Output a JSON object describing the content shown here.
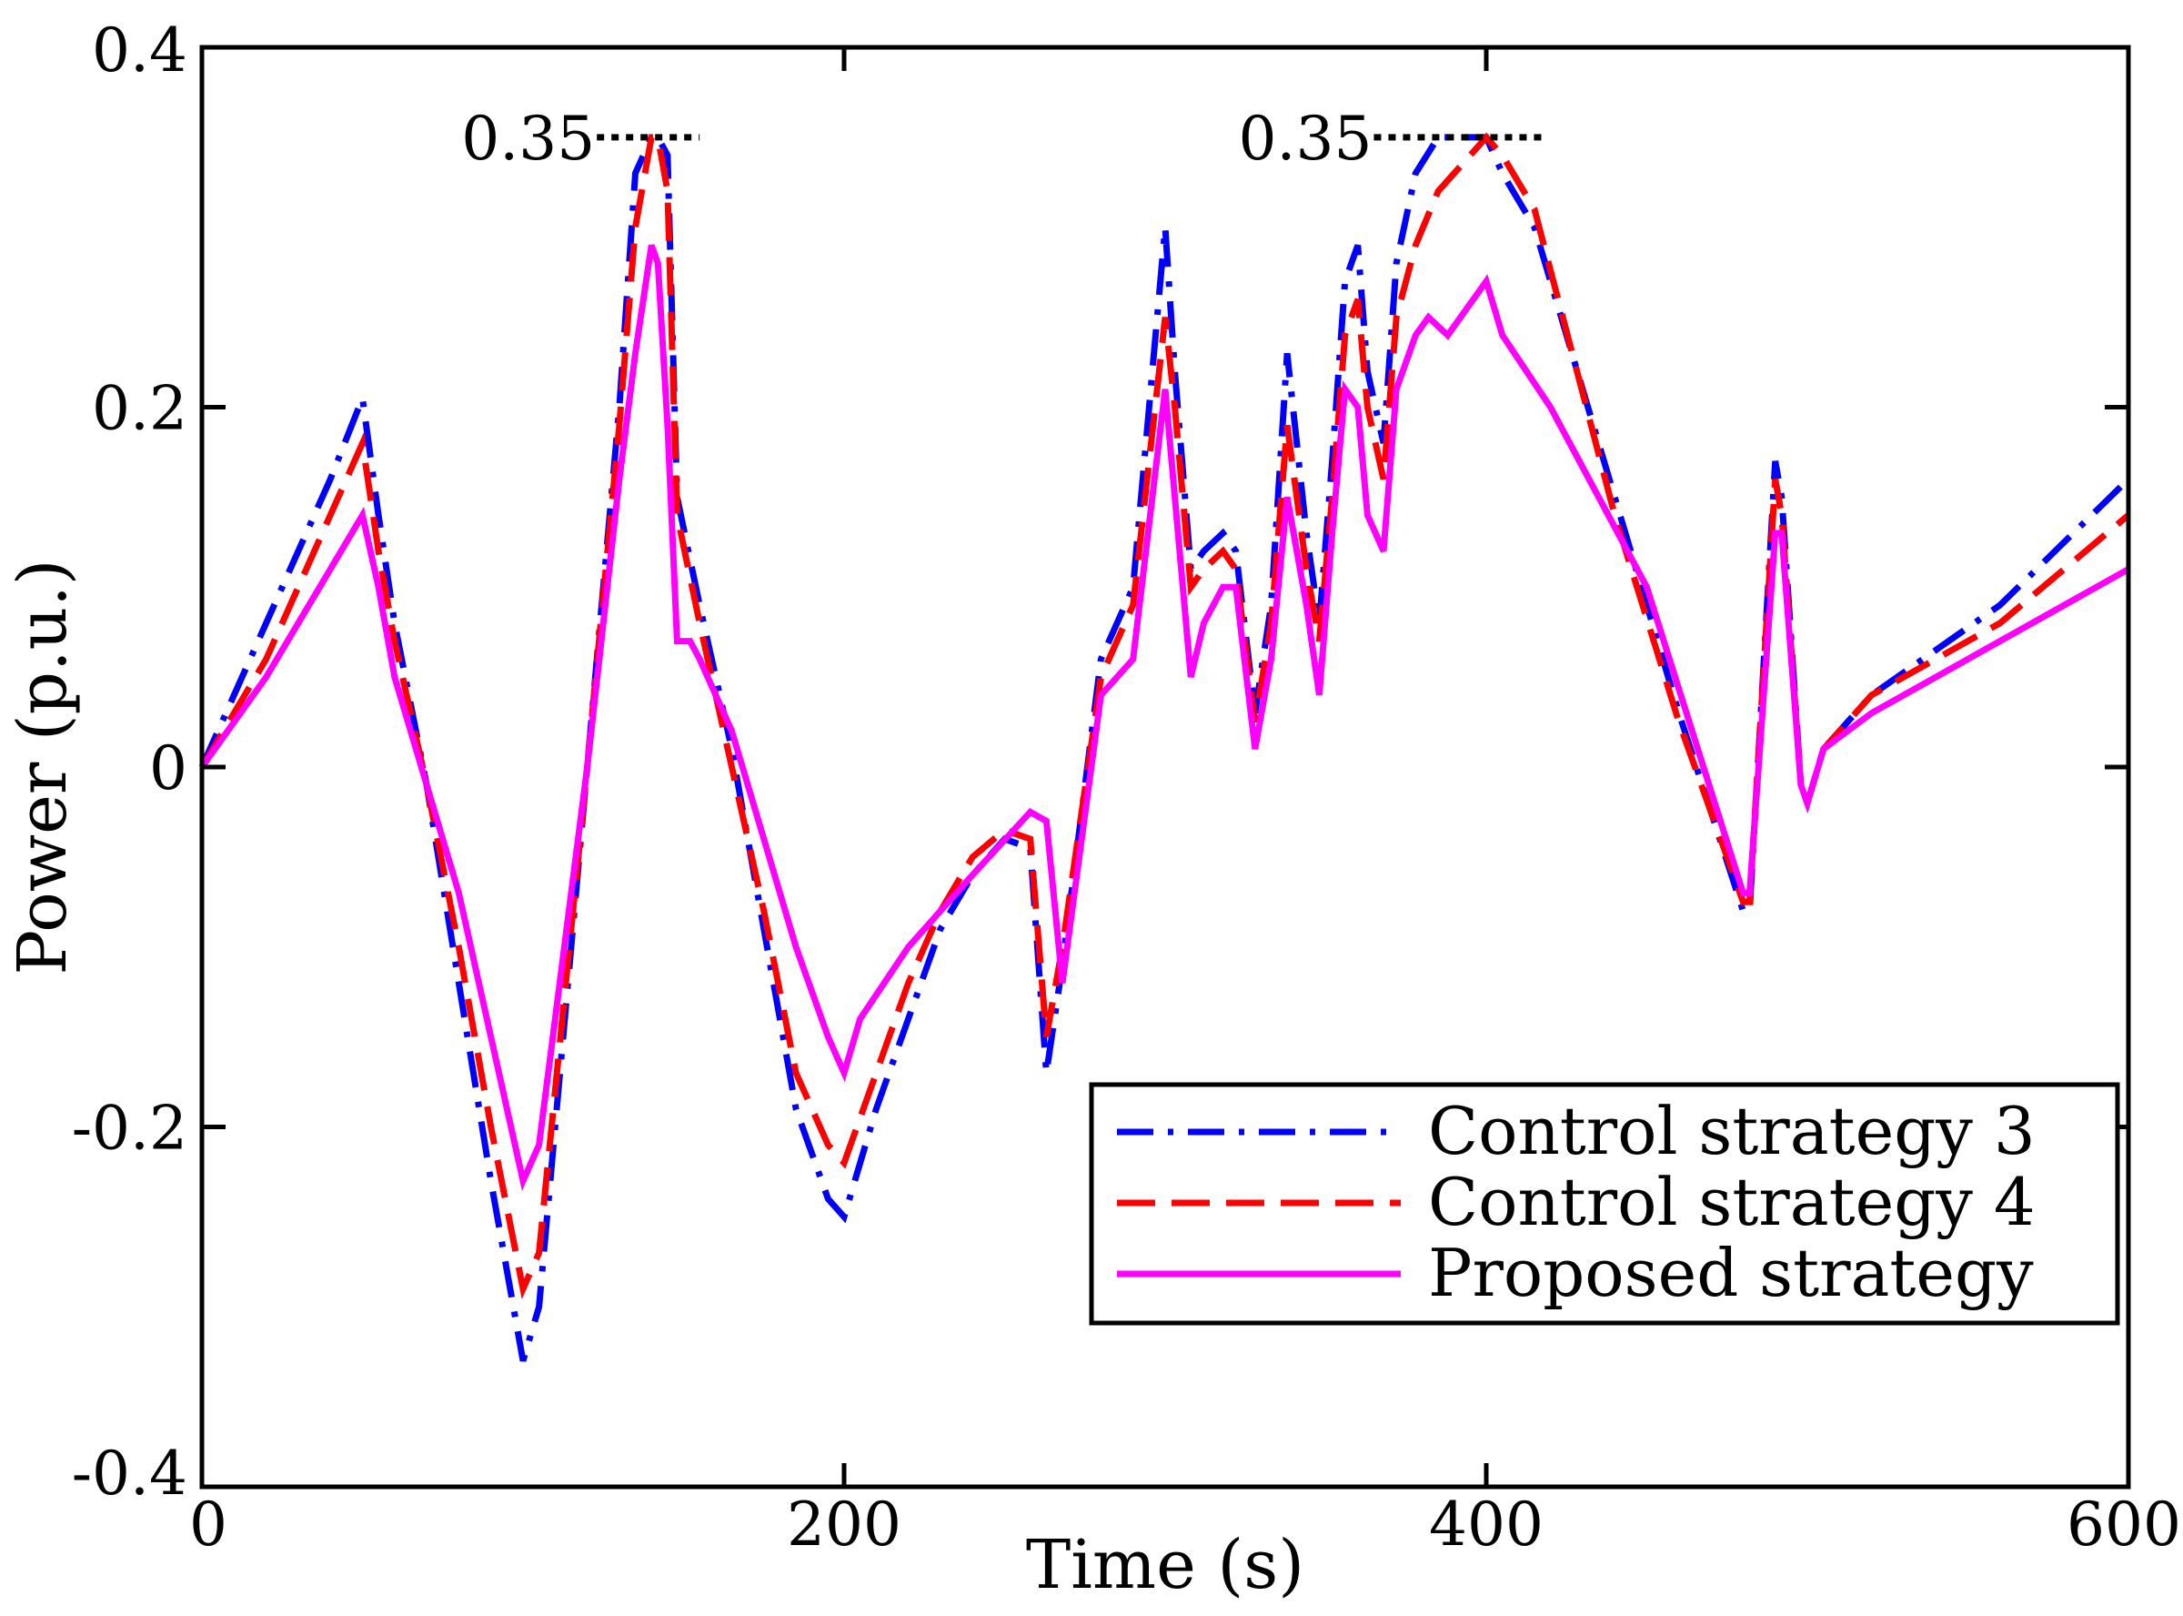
{
  "chart_data": {
    "type": "line",
    "title": "",
    "xlabel": "Time (s)",
    "ylabel": "Power (p.u.)",
    "xlim": [
      0,
      600
    ],
    "ylim": [
      -0.4,
      0.4
    ],
    "grid": false,
    "legend_position": "bottom-right",
    "xticks": [
      {
        "value": 0,
        "label": "0"
      },
      {
        "value": 200,
        "label": "200"
      },
      {
        "value": 400,
        "label": "400"
      },
      {
        "value": 600,
        "label": "600"
      }
    ],
    "yticks": [
      {
        "value": 0.4,
        "label": "0.4"
      },
      {
        "value": 0.2,
        "label": "0.2"
      },
      {
        "value": 0,
        "label": "0"
      },
      {
        "value": -0.2,
        "label": "-0.2"
      },
      {
        "value": -0.4,
        "label": "-0.4"
      }
    ],
    "annotations": [
      {
        "label": "0.35",
        "value": 0.35,
        "x_start": 123,
        "x_end": 155
      },
      {
        "label": "0.35",
        "value": 0.35,
        "x_start": 365,
        "x_end": 418
      }
    ],
    "series": [
      {
        "name": "Control strategy 3",
        "color": "#0000ff",
        "dash": "dashdot",
        "x": [
          0,
          20,
          40,
          50,
          55,
          60,
          70,
          80,
          90,
          100,
          105,
          110,
          120,
          130,
          135,
          140,
          142,
          145,
          148,
          155,
          165,
          175,
          185,
          195,
          200,
          210,
          220,
          230,
          240,
          250,
          258,
          263,
          268,
          280,
          290,
          300,
          303,
          308,
          312,
          318,
          322,
          328,
          333,
          338,
          344,
          348,
          352,
          356,
          360,
          363,
          368,
          372,
          378,
          385,
          395,
          400,
          405,
          415,
          440,
          460,
          480,
          482,
          490,
          492,
          498,
          500,
          505,
          520,
          560,
          600
        ],
        "y": [
          0.0,
          0.08,
          0.16,
          0.205,
          0.14,
          0.08,
          -0.01,
          -0.12,
          -0.23,
          -0.33,
          -0.3,
          -0.2,
          0.0,
          0.2,
          0.33,
          0.35,
          0.35,
          0.34,
          0.15,
          0.09,
          0.01,
          -0.09,
          -0.19,
          -0.24,
          -0.25,
          -0.19,
          -0.14,
          -0.09,
          -0.06,
          -0.04,
          -0.045,
          -0.17,
          -0.11,
          0.06,
          0.1,
          0.3,
          0.22,
          0.11,
          0.12,
          0.13,
          0.12,
          0.03,
          0.09,
          0.23,
          0.13,
          0.08,
          0.17,
          0.27,
          0.29,
          0.22,
          0.18,
          0.28,
          0.33,
          0.35,
          0.35,
          0.35,
          0.33,
          0.3,
          0.15,
          0.03,
          -0.08,
          -0.08,
          0.17,
          0.15,
          -0.01,
          -0.02,
          0.01,
          0.04,
          0.09,
          0.16
        ]
      },
      {
        "name": "Control strategy 4",
        "color": "#ff0000",
        "dash": "dashed",
        "x": [
          0,
          20,
          40,
          50,
          55,
          60,
          70,
          80,
          90,
          100,
          105,
          110,
          120,
          130,
          135,
          140,
          142,
          145,
          148,
          155,
          165,
          175,
          185,
          195,
          200,
          210,
          220,
          230,
          240,
          250,
          258,
          263,
          268,
          280,
          290,
          300,
          303,
          308,
          312,
          318,
          322,
          328,
          333,
          338,
          344,
          348,
          352,
          356,
          360,
          363,
          368,
          372,
          378,
          385,
          395,
          400,
          405,
          415,
          440,
          460,
          480,
          482,
          490,
          492,
          498,
          500,
          505,
          520,
          560,
          600
        ],
        "y": [
          0.0,
          0.06,
          0.14,
          0.18,
          0.12,
          0.07,
          -0.01,
          -0.1,
          -0.2,
          -0.29,
          -0.27,
          -0.18,
          0.0,
          0.19,
          0.3,
          0.35,
          0.35,
          0.32,
          0.14,
          0.08,
          0.0,
          -0.08,
          -0.17,
          -0.21,
          -0.22,
          -0.17,
          -0.12,
          -0.08,
          -0.05,
          -0.035,
          -0.04,
          -0.15,
          -0.1,
          0.05,
          0.09,
          0.25,
          0.2,
          0.1,
          0.11,
          0.12,
          0.11,
          0.025,
          0.08,
          0.19,
          0.11,
          0.07,
          0.15,
          0.24,
          0.26,
          0.2,
          0.16,
          0.25,
          0.29,
          0.32,
          0.34,
          0.35,
          0.34,
          0.31,
          0.14,
          0.025,
          -0.075,
          -0.075,
          0.16,
          0.14,
          -0.01,
          -0.02,
          0.01,
          0.04,
          0.08,
          0.14
        ]
      },
      {
        "name": "Proposed strategy",
        "color": "#ff00ff",
        "dash": "solid",
        "x": [
          0,
          20,
          40,
          50,
          55,
          60,
          70,
          80,
          90,
          100,
          105,
          110,
          120,
          130,
          135,
          140,
          142,
          145,
          148,
          152,
          155,
          165,
          175,
          185,
          195,
          200,
          205,
          220,
          240,
          258,
          263,
          268,
          280,
          290,
          300,
          303,
          308,
          312,
          318,
          322,
          328,
          333,
          338,
          344,
          348,
          352,
          356,
          360,
          363,
          368,
          372,
          378,
          382,
          388,
          400,
          405,
          420,
          450,
          480,
          482,
          490,
          492,
          498,
          500,
          505,
          520,
          560,
          600
        ],
        "y": [
          0.0,
          0.05,
          0.11,
          0.14,
          0.1,
          0.05,
          -0.01,
          -0.07,
          -0.15,
          -0.23,
          -0.21,
          -0.14,
          0.0,
          0.16,
          0.23,
          0.29,
          0.28,
          0.19,
          0.07,
          0.07,
          0.06,
          0.02,
          -0.04,
          -0.1,
          -0.15,
          -0.17,
          -0.14,
          -0.1,
          -0.06,
          -0.025,
          -0.03,
          -0.12,
          0.04,
          0.06,
          0.21,
          0.15,
          0.05,
          0.08,
          0.1,
          0.1,
          0.01,
          0.06,
          0.15,
          0.09,
          0.04,
          0.13,
          0.21,
          0.2,
          0.14,
          0.12,
          0.21,
          0.24,
          0.25,
          0.24,
          0.27,
          0.24,
          0.2,
          0.1,
          -0.07,
          -0.07,
          0.13,
          0.13,
          -0.01,
          -0.02,
          0.01,
          0.03,
          0.07,
          0.11
        ]
      }
    ]
  }
}
